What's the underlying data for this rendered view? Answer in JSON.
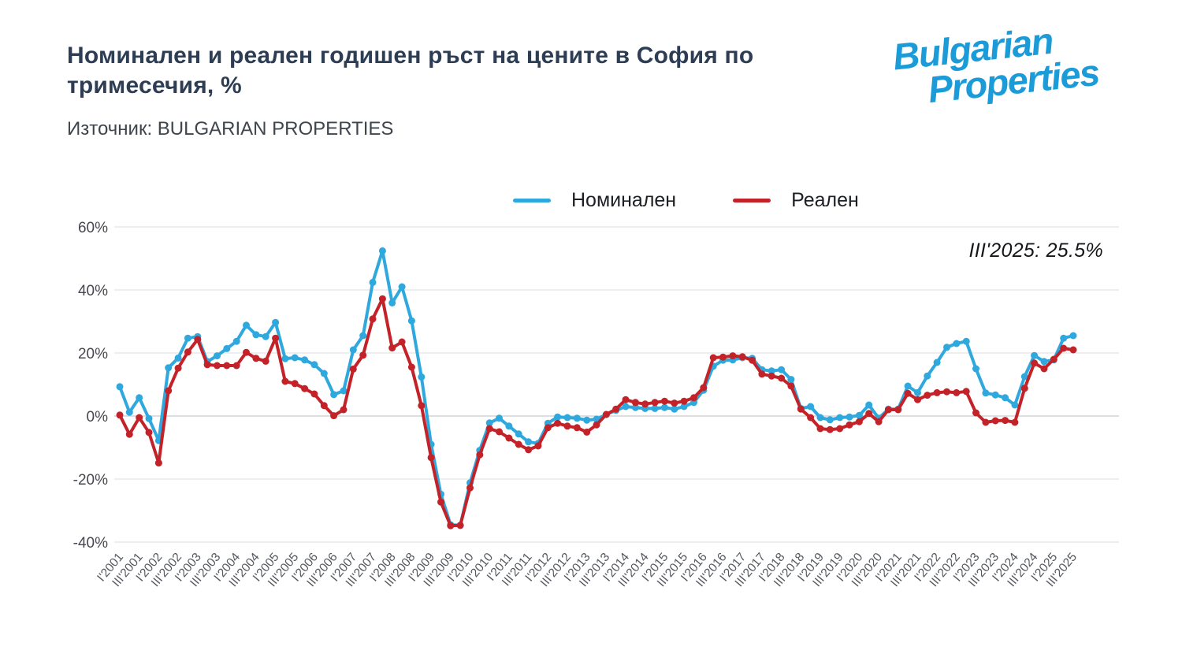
{
  "header": {
    "title": "Номинален и реален годишен ръст на цените в София по тримесечия, %",
    "source": "Източник: BULGARIAN PROPERTIES"
  },
  "logo": {
    "line1": "Bulgarian",
    "line2": "Properties",
    "color": "#1b9cd8"
  },
  "legend": {
    "items": [
      {
        "label": "Номинален",
        "color": "#2fa8dd"
      },
      {
        "label": "Реален",
        "color": "#c32229"
      }
    ]
  },
  "annotation": "III'2025: 25.5%",
  "chart_data": {
    "type": "line",
    "title": "Номинален и реален годишен ръст на цените в София по тримесечия, %",
    "xlabel": "",
    "ylabel": "",
    "ylim": [
      -40,
      60
    ],
    "yticks": [
      60,
      40,
      20,
      0,
      -20,
      -40
    ],
    "ytick_labels": [
      "60%",
      "40%",
      "20%",
      "0%",
      "-20%",
      "-40%"
    ],
    "grid": true,
    "legend_position": "top",
    "x_unit": "quarter",
    "x_tick_labels": [
      "I'2001",
      "III'2001",
      "I'2002",
      "III'2002",
      "I'2003",
      "III'2003",
      "I'2004",
      "III'2004",
      "I'2005",
      "III'2005",
      "I'2006",
      "III'2006",
      "I'2007",
      "III'2007",
      "I'2008",
      "III'2008",
      "I'2009",
      "III'2009",
      "I'2010",
      "III'2010",
      "I'2011",
      "III'2011",
      "I'2012",
      "III'2012",
      "I'2013",
      "III'2013",
      "I'2014",
      "III'2014",
      "I'2015",
      "III'2015",
      "I'2016",
      "III'2016",
      "I'2017",
      "III'2017",
      "I'2018",
      "III'2018",
      "I'2019",
      "III'2019",
      "I'2020",
      "III'2020",
      "I'2021",
      "III'2021",
      "I'2022",
      "III'2022",
      "I'2023",
      "III'2023",
      "I'2024",
      "III'2024",
      "I'2025",
      "III'2025"
    ],
    "series": [
      {
        "name": "Номинален",
        "color": "#2fa8dd",
        "values": [
          9.3,
          1.2,
          5.8,
          -0.8,
          -7.8,
          15.3,
          18.4,
          24.7,
          25.2,
          17.3,
          19.1,
          21.4,
          23.7,
          28.8,
          25.8,
          25.2,
          29.7,
          18.2,
          18.5,
          17.8,
          16.3,
          13.5,
          6.8,
          8.0,
          21.0,
          25.5,
          42.4,
          52.4,
          35.9,
          41.0,
          30.2,
          12.4,
          -9.0,
          -24.8,
          -34.5,
          -34.7,
          -21.2,
          -10.9,
          -2.2,
          -0.7,
          -3.2,
          -5.7,
          -8.2,
          -8.7,
          -2.3,
          -0.3,
          -0.5,
          -0.7,
          -1.3,
          -1.0,
          0.5,
          1.8,
          3.0,
          2.7,
          2.4,
          2.4,
          2.7,
          2.2,
          3.0,
          4.3,
          8.2,
          15.8,
          17.7,
          17.8,
          18.5,
          18.3,
          14.7,
          14.3,
          14.7,
          11.6,
          2.4,
          3.0,
          -0.5,
          -1.2,
          -0.5,
          -0.3,
          0.2,
          3.5,
          -0.7,
          2.2,
          2.2,
          9.5,
          7.4,
          12.7,
          17.0,
          21.8,
          23.0,
          23.7,
          15.0,
          7.3,
          6.7,
          5.8,
          3.5,
          12.5,
          19.2,
          17.3,
          17.8,
          24.7,
          25.5
        ]
      },
      {
        "name": "Реален",
        "color": "#c32229",
        "values": [
          0.3,
          -5.8,
          -0.5,
          -5.2,
          -14.9,
          8.0,
          15.2,
          20.3,
          24.3,
          16.3,
          16.0,
          16.0,
          16.0,
          20.2,
          18.3,
          17.4,
          24.7,
          11.0,
          10.3,
          8.7,
          7.0,
          3.3,
          0.1,
          2.0,
          14.9,
          19.3,
          30.8,
          37.2,
          21.6,
          23.5,
          15.5,
          3.3,
          -13.2,
          -27.3,
          -34.8,
          -34.7,
          -22.8,
          -12.3,
          -4.0,
          -5.0,
          -7.0,
          -9.0,
          -10.7,
          -9.5,
          -3.7,
          -2.3,
          -3.2,
          -3.7,
          -5.1,
          -2.8,
          0.5,
          2.2,
          5.2,
          4.3,
          3.8,
          4.3,
          4.7,
          4.1,
          4.7,
          5.8,
          9.0,
          18.5,
          18.7,
          19.1,
          18.8,
          17.7,
          13.3,
          12.7,
          12.0,
          9.5,
          2.2,
          -0.5,
          -4.0,
          -4.3,
          -4.0,
          -2.8,
          -1.8,
          0.8,
          -1.8,
          2.0,
          2.0,
          7.2,
          5.2,
          6.6,
          7.4,
          7.7,
          7.4,
          7.8,
          1.0,
          -2.0,
          -1.5,
          -1.4,
          -2.0,
          8.8,
          16.8,
          15.0,
          18.0,
          21.5,
          21.0
        ]
      }
    ],
    "annotation": {
      "text": "III'2025: 25.5%",
      "series": "Номинален",
      "x_label": "III'2025",
      "value": 25.5
    }
  }
}
